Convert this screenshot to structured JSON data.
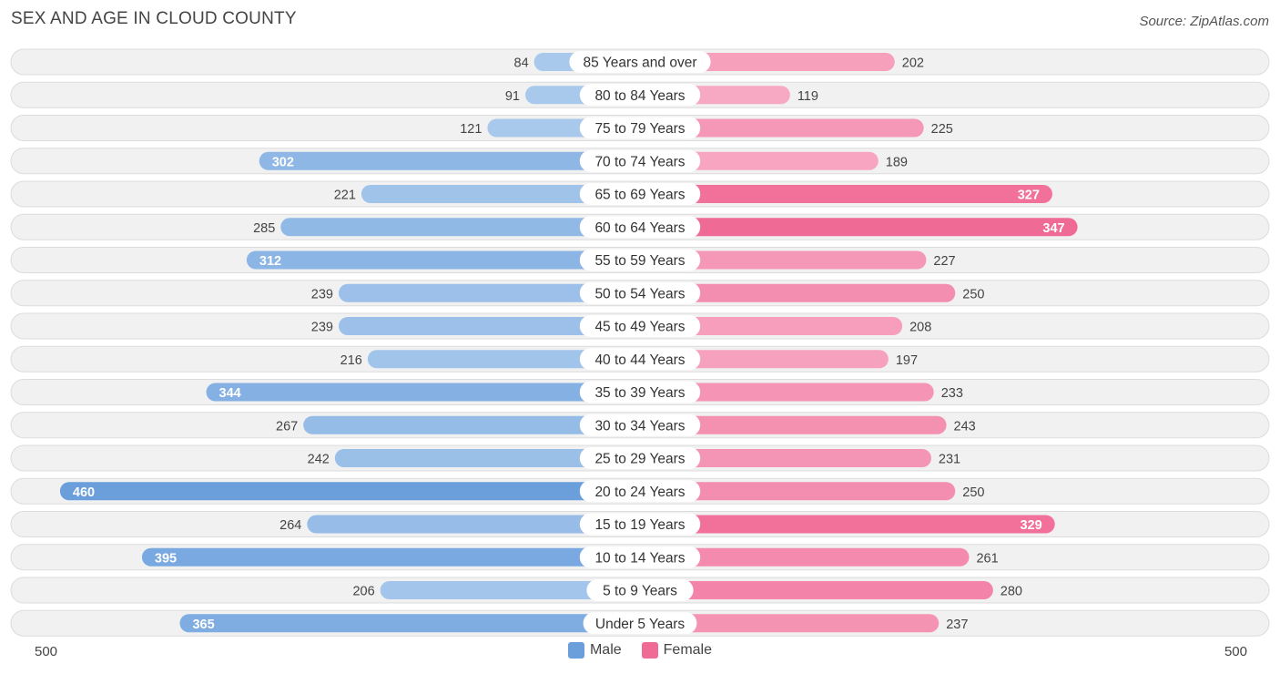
{
  "chart_data": {
    "type": "bar",
    "title": "SEX AND AGE IN CLOUD COUNTY",
    "source": "Source: ZipAtlas.com",
    "categories": [
      "85 Years and over",
      "80 to 84 Years",
      "75 to 79 Years",
      "70 to 74 Years",
      "65 to 69 Years",
      "60 to 64 Years",
      "55 to 59 Years",
      "50 to 54 Years",
      "45 to 49 Years",
      "40 to 44 Years",
      "35 to 39 Years",
      "30 to 34 Years",
      "25 to 29 Years",
      "20 to 24 Years",
      "15 to 19 Years",
      "10 to 14 Years",
      "5 to 9 Years",
      "Under 5 Years"
    ],
    "series": [
      {
        "name": "Male",
        "values": [
          84,
          91,
          121,
          302,
          221,
          285,
          312,
          239,
          239,
          216,
          344,
          267,
          242,
          460,
          264,
          395,
          206,
          365
        ]
      },
      {
        "name": "Female",
        "values": [
          202,
          119,
          225,
          189,
          327,
          347,
          227,
          250,
          208,
          197,
          233,
          243,
          231,
          250,
          329,
          261,
          280,
          237
        ]
      }
    ],
    "xlim": [
      -500,
      500
    ],
    "axis_left_label": "500",
    "axis_right_label": "500",
    "legend": [
      "Male",
      "Female"
    ],
    "legend_position": "bottom-center",
    "colors": {
      "male_light": "#a9c9ec",
      "male_dark": "#6a9fdc",
      "female_light": "#f7a8c2",
      "female_dark": "#f06a96",
      "row_bg": "#f1f1f1",
      "row_border": "#dcdcdc"
    }
  }
}
